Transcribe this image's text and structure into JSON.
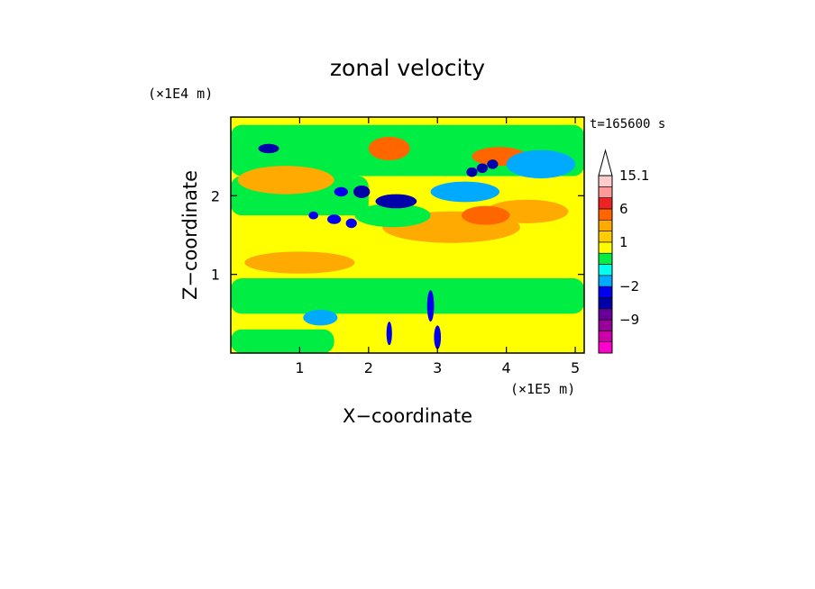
{
  "chart_data": {
    "type": "heatmap",
    "title": "zonal velocity",
    "xlabel": "X−coordinate",
    "ylabel": "Z−coordinate",
    "x_scale_label": "(×1E5 m)",
    "y_scale_label": "(×1E4 m)",
    "time_label": "t=165600 s",
    "xlim": [
      0,
      5.13
    ],
    "ylim": [
      0,
      3.0
    ],
    "x_ticks": [
      1,
      2,
      3,
      4,
      5
    ],
    "y_ticks": [
      1,
      2
    ],
    "grid": false,
    "colorbar": {
      "levels": [
        {
          "from": -14,
          "to": -12,
          "color": "#ff00cc"
        },
        {
          "from": -12,
          "to": -10,
          "color": "#cc00aa"
        },
        {
          "from": -10,
          "to": -8,
          "color": "#990099"
        },
        {
          "from": -8,
          "to": -6,
          "color": "#660099"
        },
        {
          "from": -6,
          "to": -4,
          "color": "#0000aa"
        },
        {
          "from": -4,
          "to": -2,
          "color": "#0000ee"
        },
        {
          "from": -2,
          "to": -1,
          "color": "#00aaff"
        },
        {
          "from": -1,
          "to": 0,
          "color": "#00ffee"
        },
        {
          "from": 0,
          "to": 0.5,
          "color": "#00ee44"
        },
        {
          "from": 0.5,
          "to": 1,
          "color": "#ffff00"
        },
        {
          "from": 1,
          "to": 1.5,
          "color": "#ffcc00"
        },
        {
          "from": 1.5,
          "to": 3,
          "color": "#ffaa00"
        },
        {
          "from": 3,
          "to": 6,
          "color": "#ff6600"
        },
        {
          "from": 6,
          "to": 9,
          "color": "#ee2222"
        },
        {
          "from": 9,
          "to": 12,
          "color": "#ff9999"
        },
        {
          "from": 12,
          "to": 15.1,
          "color": "#ffcccc"
        }
      ],
      "tick_labels": [
        {
          "label": "15.1",
          "value": 15.1
        },
        {
          "label": "6",
          "value": 6
        },
        {
          "label": "1",
          "value": 1
        },
        {
          "label": "−2",
          "value": -2
        },
        {
          "label": "−9",
          "value": -9
        }
      ]
    },
    "features": [
      {
        "kind": "background",
        "value": 0.8
      },
      {
        "kind": "band",
        "x": [
          0,
          5.13
        ],
        "z": [
          2.25,
          2.9
        ],
        "value": 0.3
      },
      {
        "kind": "band",
        "x": [
          0,
          2.0
        ],
        "z": [
          1.75,
          2.25
        ],
        "value": 0.3
      },
      {
        "kind": "band",
        "x": [
          0,
          5.13
        ],
        "z": [
          0.5,
          0.95
        ],
        "value": 0.3
      },
      {
        "kind": "band",
        "x": [
          0,
          1.5
        ],
        "z": [
          0.0,
          0.3
        ],
        "value": 0.3
      },
      {
        "kind": "blob",
        "x": 0.8,
        "z": 2.2,
        "rx": 0.7,
        "rz": 0.18,
        "value": 2.0
      },
      {
        "kind": "blob",
        "x": 1.0,
        "z": 1.15,
        "rx": 0.8,
        "rz": 0.14,
        "value": 2.0
      },
      {
        "kind": "blob",
        "x": 3.2,
        "z": 1.6,
        "rx": 1.0,
        "rz": 0.2,
        "value": 2.0
      },
      {
        "kind": "blob",
        "x": 4.3,
        "z": 1.8,
        "rx": 0.6,
        "rz": 0.15,
        "value": 2.0
      },
      {
        "kind": "blob",
        "x": 2.3,
        "z": 2.6,
        "rx": 0.3,
        "rz": 0.15,
        "value": 3.5
      },
      {
        "kind": "blob",
        "x": 3.9,
        "z": 2.5,
        "rx": 0.4,
        "rz": 0.12,
        "value": 3.5
      },
      {
        "kind": "blob",
        "x": 3.7,
        "z": 1.75,
        "rx": 0.35,
        "rz": 0.12,
        "value": 3.5
      },
      {
        "kind": "blob",
        "x": 4.5,
        "z": 2.4,
        "rx": 0.5,
        "rz": 0.18,
        "value": -1.5
      },
      {
        "kind": "blob",
        "x": 3.4,
        "z": 2.05,
        "rx": 0.5,
        "rz": 0.13,
        "value": -1.5
      },
      {
        "kind": "blob",
        "x": 1.3,
        "z": 0.45,
        "rx": 0.25,
        "rz": 0.1,
        "value": -1.5
      },
      {
        "kind": "blob",
        "x": 2.35,
        "z": 1.75,
        "rx": 0.55,
        "rz": 0.15,
        "value": 0.3
      },
      {
        "kind": "blob",
        "x": 0.55,
        "z": 2.6,
        "rx": 0.15,
        "rz": 0.06,
        "value": -5
      },
      {
        "kind": "blob",
        "x": 2.4,
        "z": 1.93,
        "rx": 0.3,
        "rz": 0.09,
        "value": -5
      },
      {
        "kind": "blob",
        "x": 1.9,
        "z": 2.05,
        "rx": 0.12,
        "rz": 0.08,
        "value": -5
      },
      {
        "kind": "blob",
        "x": 1.6,
        "z": 2.05,
        "rx": 0.1,
        "rz": 0.06,
        "value": -4
      },
      {
        "kind": "blob",
        "x": 1.5,
        "z": 1.7,
        "rx": 0.1,
        "rz": 0.06,
        "value": -4
      },
      {
        "kind": "blob",
        "x": 1.75,
        "z": 1.65,
        "rx": 0.08,
        "rz": 0.06,
        "value": -4
      },
      {
        "kind": "blob",
        "x": 1.2,
        "z": 1.75,
        "rx": 0.07,
        "rz": 0.05,
        "value": -4
      },
      {
        "kind": "blob",
        "x": 3.5,
        "z": 2.3,
        "rx": 0.08,
        "rz": 0.06,
        "value": -5
      },
      {
        "kind": "blob",
        "x": 3.65,
        "z": 2.35,
        "rx": 0.08,
        "rz": 0.06,
        "value": -5
      },
      {
        "kind": "blob",
        "x": 3.8,
        "z": 2.4,
        "rx": 0.08,
        "rz": 0.06,
        "value": -5
      },
      {
        "kind": "blob",
        "x": 2.3,
        "z": 0.25,
        "rx": 0.04,
        "rz": 0.15,
        "value": -4
      },
      {
        "kind": "blob",
        "x": 2.9,
        "z": 0.6,
        "rx": 0.05,
        "rz": 0.2,
        "value": -4
      },
      {
        "kind": "blob",
        "x": 3.0,
        "z": 0.2,
        "rx": 0.05,
        "rz": 0.15,
        "value": -4
      }
    ]
  }
}
